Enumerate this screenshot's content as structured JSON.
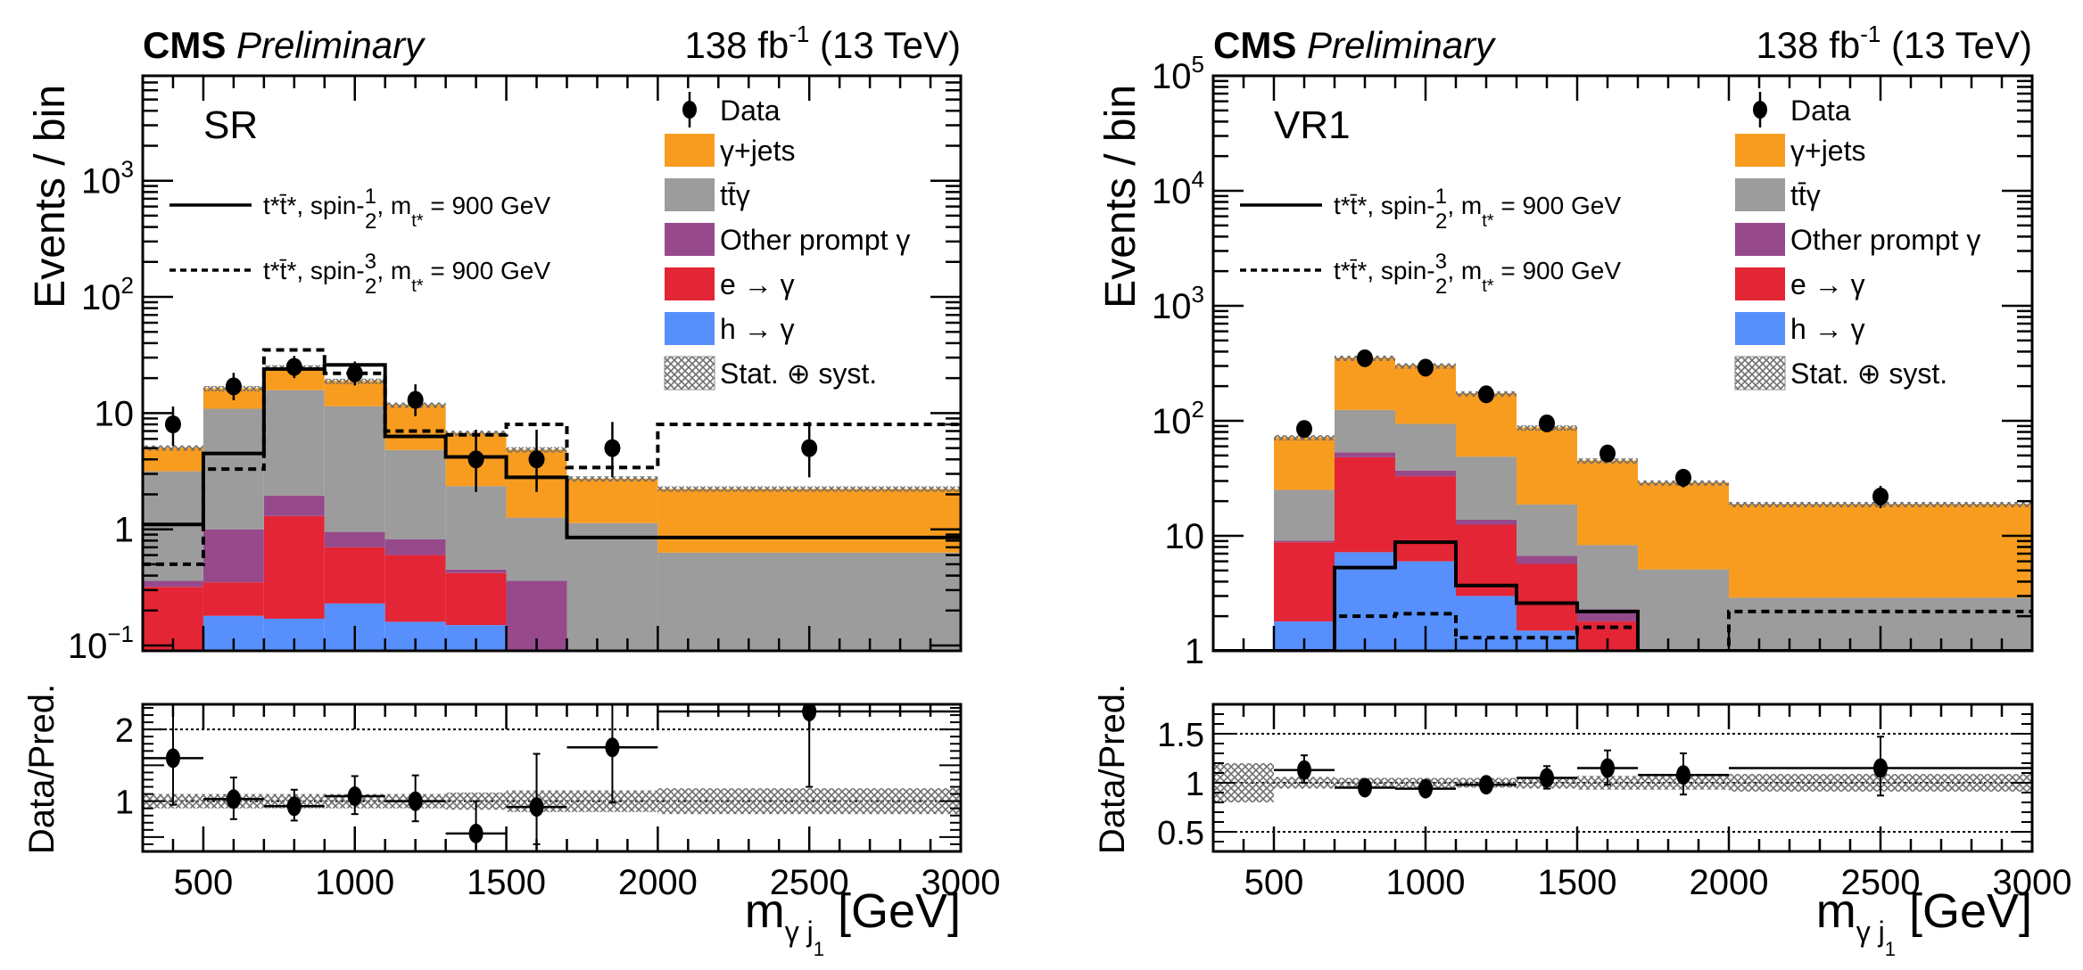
{
  "chart_data": [
    {
      "type": "bar",
      "stacked": true,
      "yscale": "log",
      "header_left_bold": "CMS",
      "header_left_italic": "Preliminary",
      "header_right": "138 fb",
      "header_right_sup": "-1",
      "header_right_tail": " (13 TeV)",
      "region_label": "SR",
      "ylabel": "Events / bin",
      "xlabel": "m",
      "xlabel_sub": "γ j",
      "xlabel_subsub": "1",
      "xlabel_unit": " [GeV]",
      "ylim": [
        0.09,
        8000
      ],
      "xlim": [
        300,
        3000
      ],
      "y_ticks": [
        {
          "v": 0.1,
          "label": "10",
          "sup": "−1"
        },
        {
          "v": 1,
          "label": "1",
          "sup": ""
        },
        {
          "v": 10,
          "label": "10",
          "sup": ""
        },
        {
          "v": 100,
          "label": "10",
          "sup": "2"
        },
        {
          "v": 1000,
          "label": "10",
          "sup": "3"
        }
      ],
      "x_ticks": [
        500,
        1000,
        1500,
        2000,
        2500,
        3000
      ],
      "bin_edges": [
        300,
        500,
        700,
        900,
        1100,
        1300,
        1500,
        1700,
        2000,
        3000
      ],
      "stack_order": [
        "h_to_gamma",
        "e_to_gamma",
        "other_prompt",
        "ttgamma",
        "gamma_jets"
      ],
      "series": [
        {
          "key": "h_to_gamma",
          "name": "h → γ",
          "color": "#5790FC",
          "values": [
            0.05,
            0.18,
            0.17,
            0.23,
            0.16,
            0.15,
            0.05,
            0.01,
            0.01
          ]
        },
        {
          "key": "e_to_gamma",
          "name": "e → γ",
          "color": "#E42536",
          "values": [
            0.27,
            0.17,
            1.13,
            0.47,
            0.44,
            0.27,
            0.04,
            0.01,
            0.01
          ]
        },
        {
          "key": "other_prompt",
          "name": "Other prompt γ",
          "color": "#964A8B",
          "values": [
            0.04,
            0.65,
            0.65,
            0.25,
            0.22,
            0.03,
            0.27,
            0.01,
            0.01
          ]
        },
        {
          "key": "ttgamma",
          "name": "tt̄γ",
          "color": "#9C9C9C",
          "values": [
            2.8,
            9.9,
            13.8,
            10.5,
            4.0,
            1.9,
            0.9,
            1.1,
            0.6
          ]
        },
        {
          "key": "gamma_jets",
          "name": "γ+jets",
          "color": "#F89C20",
          "values": [
            1.9,
            5.5,
            9.0,
            7.5,
            7.0,
            4.4,
            3.6,
            1.6,
            1.6
          ]
        }
      ],
      "data_points": [
        {
          "x": 400,
          "y": 8.0,
          "err_up": 3.4,
          "err_dn": 2.8
        },
        {
          "x": 600,
          "y": 17.0,
          "err_up": 5.2,
          "err_dn": 4.1
        },
        {
          "x": 800,
          "y": 25.0,
          "err_up": 6.1,
          "err_dn": 5.0
        },
        {
          "x": 1000,
          "y": 22.0,
          "err_up": 5.8,
          "err_dn": 4.7
        },
        {
          "x": 1200,
          "y": 13.0,
          "err_up": 4.7,
          "err_dn": 3.6
        },
        {
          "x": 1400,
          "y": 4.0,
          "err_up": 3.2,
          "err_dn": 1.9
        },
        {
          "x": 1600,
          "y": 4.0,
          "err_up": 3.2,
          "err_dn": 1.9
        },
        {
          "x": 1850,
          "y": 5.0,
          "err_up": 3.4,
          "err_dn": 2.2
        },
        {
          "x": 2500,
          "y": 5.0,
          "err_up": 3.4,
          "err_dn": 2.2
        }
      ],
      "signals": [
        {
          "name_pre": "t*t̄*, spin-",
          "frac_num": "1",
          "frac_den": "2",
          "name_post": ", m",
          "name_sub": "t*",
          "name_tail": " = 900 GeV",
          "style": "solid",
          "values": [
            1.1,
            4.5,
            24.0,
            26.0,
            6.3,
            4.2,
            2.8,
            0.85,
            0.85
          ]
        },
        {
          "name_pre": "t*t̄*, spin-",
          "frac_num": "3",
          "frac_den": "2",
          "name_post": ", m",
          "name_sub": "t*",
          "name_tail": " = 900 GeV",
          "style": "dashed",
          "values": [
            0.5,
            3.3,
            35.0,
            22.0,
            7.0,
            6.5,
            8.0,
            3.4,
            8.0
          ]
        }
      ],
      "data_label": "Data",
      "unc_label": "Stat. ⊕ syst.",
      "ratio": {
        "ylabel": "Data/Pred.",
        "ylim": [
          0.3,
          2.35
        ],
        "y_ticks": [
          {
            "v": 1,
            "label": "1"
          },
          {
            "v": 2,
            "label": "2"
          }
        ],
        "ref_lines": [
          1,
          2
        ],
        "unc_band": [
          0.1,
          0.1,
          0.1,
          0.1,
          0.1,
          0.12,
          0.15,
          0.15,
          0.18
        ],
        "points": [
          {
            "x": 400,
            "xerr": 100,
            "y": 1.6,
            "err_up": 0.75,
            "err_dn": 0.65
          },
          {
            "x": 600,
            "xerr": 100,
            "y": 1.03,
            "err_up": 0.3,
            "err_dn": 0.28
          },
          {
            "x": 800,
            "xerr": 100,
            "y": 0.93,
            "err_up": 0.23,
            "err_dn": 0.2
          },
          {
            "x": 1000,
            "xerr": 100,
            "y": 1.07,
            "err_up": 0.28,
            "err_dn": 0.25
          },
          {
            "x": 1200,
            "xerr": 100,
            "y": 1.0,
            "err_up": 0.36,
            "err_dn": 0.28
          },
          {
            "x": 1400,
            "xerr": 100,
            "y": 0.55,
            "err_up": 0.45,
            "err_dn": 0.3
          },
          {
            "x": 1600,
            "xerr": 100,
            "y": 0.92,
            "err_up": 0.74,
            "err_dn": 0.52
          },
          {
            "x": 1850,
            "xerr": 150,
            "y": 1.75,
            "err_up": 1.2,
            "err_dn": 0.77
          },
          {
            "x": 2500,
            "xerr": 500,
            "y": 2.25,
            "err_up": 1.5,
            "err_dn": 1.05
          }
        ]
      }
    },
    {
      "type": "bar",
      "stacked": true,
      "yscale": "log",
      "header_left_bold": "CMS",
      "header_left_italic": "Preliminary",
      "header_right": "138 fb",
      "header_right_sup": "-1",
      "header_right_tail": " (13 TeV)",
      "region_label": "VR1",
      "ylabel": "Events / bin",
      "xlabel": "m",
      "xlabel_sub": "γ j",
      "xlabel_subsub": "1",
      "xlabel_unit": " [GeV]",
      "ylim": [
        1,
        100000
      ],
      "xlim": [
        300,
        3000
      ],
      "y_ticks": [
        {
          "v": 1,
          "label": "1",
          "sup": ""
        },
        {
          "v": 10,
          "label": "10",
          "sup": ""
        },
        {
          "v": 100,
          "label": "10",
          "sup": "2"
        },
        {
          "v": 1000,
          "label": "10",
          "sup": "3"
        },
        {
          "v": 10000,
          "label": "10",
          "sup": "4"
        },
        {
          "v": 100000,
          "label": "10",
          "sup": "5"
        }
      ],
      "x_ticks": [
        500,
        1000,
        1500,
        2000,
        2500,
        3000
      ],
      "bin_edges": [
        300,
        500,
        700,
        900,
        1100,
        1300,
        1500,
        1700,
        2000,
        3000
      ],
      "stack_order": [
        "h_to_gamma",
        "e_to_gamma",
        "other_prompt",
        "ttgamma",
        "gamma_jets"
      ],
      "series": [
        {
          "key": "h_to_gamma",
          "name": "h → γ",
          "color": "#5790FC",
          "values": [
            0.0,
            1.8,
            7.2,
            6.0,
            3.0,
            1.5,
            0.0,
            0.0,
            0.0
          ]
        },
        {
          "key": "e_to_gamma",
          "name": "e → γ",
          "color": "#E42536",
          "values": [
            0.0,
            7.0,
            41.0,
            27.0,
            9.5,
            4.2,
            1.8,
            0.0,
            0.0
          ]
        },
        {
          "key": "other_prompt",
          "name": "Other prompt γ",
          "color": "#964A8B",
          "values": [
            0.0,
            0.3,
            5.0,
            4.0,
            1.3,
            1.0,
            0.5,
            0.1,
            0.0
          ]
        },
        {
          "key": "ttgamma",
          "name": "tt̄γ",
          "color": "#9C9C9C",
          "values": [
            0.0,
            16.0,
            71.0,
            57.0,
            35.0,
            12.0,
            6.0,
            5.0,
            2.9
          ]
        },
        {
          "key": "gamma_jets",
          "name": "γ+jets",
          "color": "#F89C20",
          "values": [
            0.0,
            47.0,
            230.0,
            210.0,
            125.0,
            69.0,
            37.0,
            24.0,
            16.0
          ]
        }
      ],
      "data_points": [
        {
          "x": 600,
          "y": 85,
          "err_up": 9.7,
          "err_dn": 9.2
        },
        {
          "x": 800,
          "y": 350,
          "err_up": 19.2,
          "err_dn": 18.7
        },
        {
          "x": 1000,
          "y": 290,
          "err_up": 17.5,
          "err_dn": 17.0
        },
        {
          "x": 1200,
          "y": 170,
          "err_up": 13.5,
          "err_dn": 13.0
        },
        {
          "x": 1400,
          "y": 95,
          "err_up": 10.3,
          "err_dn": 9.7
        },
        {
          "x": 1600,
          "y": 52,
          "err_up": 7.7,
          "err_dn": 7.2
        },
        {
          "x": 1850,
          "y": 32,
          "err_up": 6.2,
          "err_dn": 5.6
        },
        {
          "x": 2500,
          "y": 22,
          "err_up": 5.2,
          "err_dn": 4.6
        }
      ],
      "signals": [
        {
          "name_pre": "t*t̄*, spin-",
          "frac_num": "1",
          "frac_den": "2",
          "name_post": ", m",
          "name_sub": "t*",
          "name_tail": " = 900 GeV",
          "style": "solid",
          "values": [
            1.0,
            1.0,
            5.3,
            8.8,
            3.7,
            2.6,
            2.2,
            1.0,
            1.0
          ]
        },
        {
          "name_pre": "t*t̄*, spin-",
          "frac_num": "3",
          "frac_den": "2",
          "name_post": ", m",
          "name_sub": "t*",
          "name_tail": " = 900 GeV",
          "style": "dashed",
          "values": [
            1.0,
            1.0,
            2.0,
            2.1,
            1.3,
            1.3,
            1.6,
            1.0,
            2.2
          ]
        }
      ],
      "data_label": "Data",
      "unc_label": "Stat. ⊕ syst.",
      "ratio": {
        "ylabel": "Data/Pred.",
        "ylim": [
          0.3,
          1.8
        ],
        "y_ticks": [
          {
            "v": 0.5,
            "label": "0.5"
          },
          {
            "v": 1,
            "label": "1"
          },
          {
            "v": 1.5,
            "label": "1.5"
          }
        ],
        "ref_lines": [
          0.5,
          1,
          1.5
        ],
        "unc_band": [
          0.2,
          0.06,
          0.05,
          0.05,
          0.05,
          0.06,
          0.07,
          0.07,
          0.09
        ],
        "points": [
          {
            "x": 600,
            "xerr": 100,
            "y": 1.13,
            "err_up": 0.15,
            "err_dn": 0.13
          },
          {
            "x": 800,
            "xerr": 100,
            "y": 0.95,
            "err_up": 0.05,
            "err_dn": 0.05
          },
          {
            "x": 1000,
            "xerr": 100,
            "y": 0.94,
            "err_up": 0.05,
            "err_dn": 0.05
          },
          {
            "x": 1200,
            "xerr": 100,
            "y": 0.98,
            "err_up": 0.07,
            "err_dn": 0.07
          },
          {
            "x": 1400,
            "xerr": 100,
            "y": 1.05,
            "err_up": 0.12,
            "err_dn": 0.11
          },
          {
            "x": 1600,
            "xerr": 100,
            "y": 1.15,
            "err_up": 0.18,
            "err_dn": 0.17
          },
          {
            "x": 1850,
            "xerr": 150,
            "y": 1.08,
            "err_up": 0.22,
            "err_dn": 0.2
          },
          {
            "x": 2500,
            "xerr": 500,
            "y": 1.15,
            "err_up": 0.32,
            "err_dn": 0.28
          }
        ]
      }
    }
  ]
}
